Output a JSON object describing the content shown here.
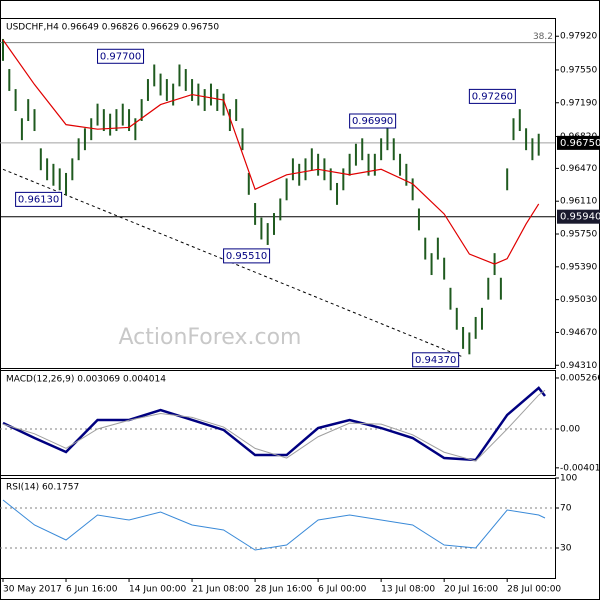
{
  "chart_data": [
    {
      "type": "ohlc",
      "title": "USDCHF,H4 0.96649 0.96826 0.96629 0.96750",
      "watermark": "ActionForex.com",
      "color": "#1f5a1f",
      "xlim": [
        0,
        86
      ],
      "ylim": [
        0.9428,
        0.9812
      ],
      "yticks": [
        {
          "value": 0.9792,
          "label": "0.97920"
        },
        {
          "value": 0.9755,
          "label": "0.97550"
        },
        {
          "value": 0.9719,
          "label": "0.97190"
        },
        {
          "value": 0.9682,
          "label": "0.96820"
        },
        {
          "value": 0.9647,
          "label": "0.96470"
        },
        {
          "value": 0.9611,
          "label": "0.96110"
        },
        {
          "value": 0.9575,
          "label": "0.95750"
        },
        {
          "value": 0.9539,
          "label": "0.95390"
        },
        {
          "value": 0.9503,
          "label": "0.95030"
        },
        {
          "value": 0.9467,
          "label": "0.94670"
        },
        {
          "value": 0.9431,
          "label": "0.94310"
        }
      ],
      "high": [
        0.9789,
        0.9756,
        0.9734,
        0.9702,
        0.9723,
        0.9712,
        0.9669,
        0.9658,
        0.9652,
        0.9647,
        0.9642,
        0.9658,
        0.968,
        0.9691,
        0.9702,
        0.9718,
        0.9712,
        0.9707,
        0.9712,
        0.9718,
        0.9712,
        0.9702,
        0.9723,
        0.9745,
        0.9761,
        0.9751,
        0.9745,
        0.974,
        0.9761,
        0.9756,
        0.9745,
        0.974,
        0.9734,
        0.974,
        0.9734,
        0.9729,
        0.9712,
        0.9723,
        0.9691,
        0.9642,
        0.9609,
        0.9593,
        0.9587,
        0.9598,
        0.9614,
        0.9636,
        0.9658,
        0.9652,
        0.9658,
        0.9669,
        0.9663,
        0.9658,
        0.9647,
        0.9631,
        0.9647,
        0.9663,
        0.9674,
        0.968,
        0.9663,
        0.9663,
        0.968,
        0.9691,
        0.968,
        0.9663,
        0.9652,
        0.9636,
        0.9603,
        0.9571,
        0.9554,
        0.9571,
        0.9549,
        0.9516,
        0.9494,
        0.9473,
        0.9467,
        0.9484,
        0.9494,
        0.9527,
        0.9554,
        0.9527,
        0.9647,
        0.9702,
        0.9712,
        0.9691,
        0.968,
        0.9685
      ],
      "low": [
        0.9765,
        0.9732,
        0.971,
        0.9678,
        0.9699,
        0.9688,
        0.9645,
        0.9634,
        0.9628,
        0.9623,
        0.9618,
        0.9634,
        0.9656,
        0.9667,
        0.9678,
        0.9694,
        0.9688,
        0.9683,
        0.9688,
        0.9694,
        0.9688,
        0.9678,
        0.9699,
        0.9721,
        0.9737,
        0.9727,
        0.9721,
        0.9716,
        0.9737,
        0.9732,
        0.9721,
        0.9716,
        0.971,
        0.9716,
        0.971,
        0.9705,
        0.9688,
        0.9699,
        0.9667,
        0.9618,
        0.9585,
        0.9569,
        0.9563,
        0.9574,
        0.959,
        0.9612,
        0.9634,
        0.9628,
        0.9634,
        0.9645,
        0.9639,
        0.9634,
        0.9623,
        0.9607,
        0.9623,
        0.9639,
        0.965,
        0.9656,
        0.9639,
        0.9639,
        0.9656,
        0.9667,
        0.9656,
        0.9639,
        0.9628,
        0.9612,
        0.9579,
        0.9547,
        0.953,
        0.9547,
        0.9525,
        0.9492,
        0.947,
        0.9449,
        0.9443,
        0.946,
        0.947,
        0.9503,
        0.953,
        0.9503,
        0.9623,
        0.9678,
        0.9688,
        0.9667,
        0.9656,
        0.9661
      ],
      "ma": {
        "x": [
          0,
          5,
          10,
          15,
          20,
          25,
          30,
          35,
          40,
          45,
          50,
          55,
          60,
          65,
          70,
          74,
          78,
          80,
          83,
          85
        ],
        "values": [
          0.9788,
          0.9739,
          0.9695,
          0.969,
          0.9692,
          0.9717,
          0.9728,
          0.9722,
          0.9624,
          0.964,
          0.9646,
          0.964,
          0.9646,
          0.963,
          0.9597,
          0.9553,
          0.9542,
          0.9548,
          0.9586,
          0.9608
        ],
        "color": "#e00000"
      },
      "levels": [
        {
          "value": 0.9675,
          "label": "0.96750",
          "color": "#000000",
          "line": "#a0a0a0"
        },
        {
          "value": 0.9594,
          "label": "0.95940",
          "color": "#1a1a2e",
          "line": "#000000"
        }
      ],
      "fib_level": {
        "label": "38.2",
        "value": 0.9785
      },
      "trendline": {
        "x": [
          0,
          73
        ],
        "values": [
          0.9646,
          0.944
        ]
      },
      "annotations": [
        {
          "label": "0.97700",
          "value": 0.977,
          "x": 15
        },
        {
          "label": "0.96130",
          "value": 0.9613,
          "x": 2
        },
        {
          "label": "0.95510",
          "value": 0.9551,
          "x": 35
        },
        {
          "label": "0.96990",
          "value": 0.9699,
          "x": 55
        },
        {
          "label": "0.97260",
          "value": 0.9726,
          "x": 74
        },
        {
          "label": "0.94370",
          "value": 0.9437,
          "x": 65
        }
      ]
    },
    {
      "type": "line",
      "title": "MACD(12,26,9) 0.003069 0.004014",
      "xlim": [
        0,
        86
      ],
      "ylim": [
        -0.00475,
        0.00609
      ],
      "yticks": [
        0.005266,
        {
          "value": 0,
          "label": "0.00"
        },
        -0.004011
      ],
      "levels": [
        0
      ],
      "x": [
        0,
        5,
        10,
        15,
        20,
        25,
        30,
        35,
        40,
        45,
        50,
        55,
        60,
        65,
        70,
        75,
        80,
        85,
        86
      ],
      "series": [
        {
          "color": "#000080",
          "width": 2.5,
          "values": [
            0.00062,
            -0.00093,
            -0.00238,
            0.00093,
            0.00093,
            0.00196,
            0.00093,
            -0.0001,
            -0.00269,
            -0.00269,
            0.0001,
            0.00093,
            0.0001,
            -0.00093,
            -0.003,
            -0.0032,
            0.00145,
            0.00424,
            0.00341
          ]
        },
        {
          "color": "#a0a0a0",
          "width": 1,
          "values": [
            0.0005,
            -0.0005,
            -0.002,
            0,
            0.0009,
            0.0016,
            0.0012,
            0.0002,
            -0.002,
            -0.003,
            -0.0008,
            0.0006,
            0.0005,
            -0.0006,
            -0.0024,
            -0.0033,
            0,
            0.0035,
            0.004
          ]
        }
      ]
    },
    {
      "type": "line",
      "title": "RSI(14) 60.1757",
      "xlim": [
        0,
        86
      ],
      "ylim": [
        0,
        100
      ],
      "yticks": [
        100,
        70,
        30
      ],
      "levels": [
        70,
        30
      ],
      "x": [
        0,
        5,
        10,
        15,
        20,
        25,
        30,
        35,
        40,
        45,
        50,
        55,
        60,
        65,
        70,
        75,
        80,
        85,
        86
      ],
      "series": [
        {
          "color": "#3a8ad8",
          "width": 1,
          "values": [
            78,
            53,
            38,
            63,
            58,
            66,
            53,
            48,
            28,
            33,
            58,
            63,
            58,
            53,
            33,
            30,
            68,
            63,
            60
          ]
        }
      ],
      "xticks": [
        {
          "value": 0,
          "label": "30 May 2017"
        },
        {
          "value": 10,
          "label": "6 Jun 16:00"
        },
        {
          "value": 20,
          "label": "14 Jun 00:00"
        },
        {
          "value": 30,
          "label": "21 Jun 08:00"
        },
        {
          "value": 40,
          "label": "28 Jun 16:00"
        },
        {
          "value": 50,
          "label": "6 Jul 00:00"
        },
        {
          "value": 60,
          "label": "13 Jul 08:00"
        },
        {
          "value": 70,
          "label": "20 Jul 16:00"
        },
        {
          "value": 80,
          "label": "28 Jul 00:00"
        }
      ]
    }
  ]
}
